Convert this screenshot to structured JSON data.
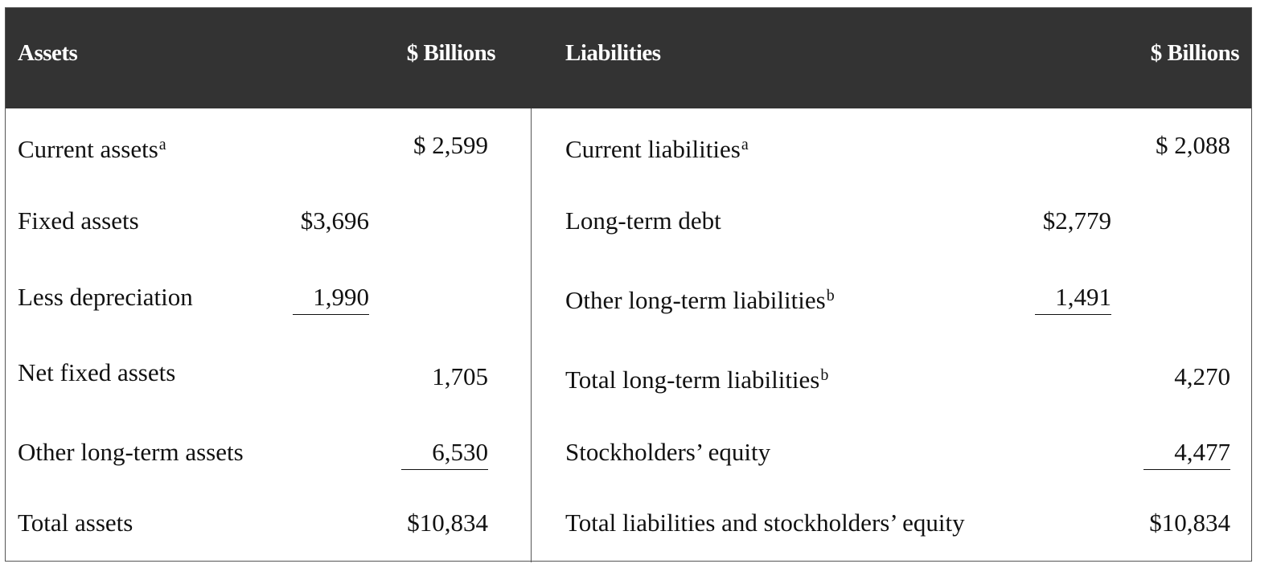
{
  "header": {
    "assets_label": "Assets",
    "assets_value_label": "$ Billions",
    "liabilities_label": "Liabilities",
    "liabilities_value_label": "$ Billions"
  },
  "assets": {
    "current_assets": {
      "label": "Current assets",
      "note": "a",
      "total": "$  2,599"
    },
    "fixed_assets": {
      "label": "Fixed assets",
      "sub": "$3,696"
    },
    "less_depreciation": {
      "label": "Less depreciation",
      "sub": "1,990"
    },
    "net_fixed_assets": {
      "label": "Net fixed assets",
      "total": "1,705"
    },
    "other_long_term_assets": {
      "label": "Other long-term assets",
      "total": "6,530"
    },
    "total_assets": {
      "label": "Total assets",
      "total": "$10,834"
    }
  },
  "liabilities": {
    "current_liabilities": {
      "label": "Current liabilities",
      "note": "a",
      "total": "$  2,088"
    },
    "long_term_debt": {
      "label": "Long-term debt",
      "sub": "$2,779"
    },
    "other_long_term_liabilities": {
      "label": "Other long-term liabilities",
      "note": "b",
      "sub": "1,491"
    },
    "total_long_term_liabilities": {
      "label": "Total long-term liabilities",
      "note": "b",
      "total": "4,270"
    },
    "stockholders_equity": {
      "label": "Stockholders’ equity",
      "total": "4,477"
    },
    "total_liabilities_equity": {
      "label": "Total liabilities and stockholders’ equity",
      "total": "$10,834"
    }
  }
}
